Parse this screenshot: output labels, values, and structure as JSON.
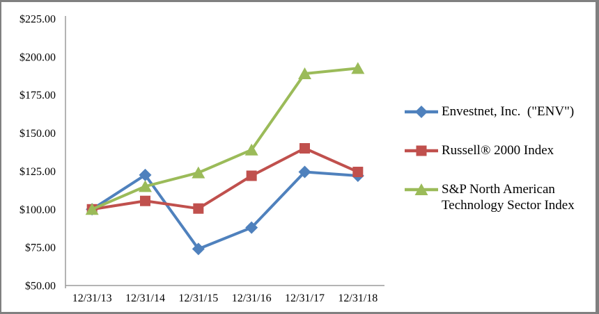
{
  "chart_data": {
    "type": "line",
    "title": "",
    "xlabel": "",
    "ylabel": "",
    "categories": [
      "12/31/13",
      "12/31/14",
      "12/31/15",
      "12/31/16",
      "12/31/17",
      "12/31/18"
    ],
    "series": [
      {
        "name": "Envestnet, Inc.  (\"ENV\")",
        "marker": "diamond",
        "color": "#4F81BD",
        "values": [
          100.0,
          122.5,
          74.0,
          88.0,
          124.5,
          122.0
        ]
      },
      {
        "name": "Russell® 2000 Index",
        "marker": "square",
        "color": "#C0504D",
        "values": [
          100.0,
          105.5,
          100.5,
          122.0,
          140.0,
          124.5
        ]
      },
      {
        "name": "S&P North American Technology Sector Index",
        "marker": "triangle",
        "color": "#9BBB59",
        "values": [
          100.0,
          115.0,
          124.0,
          139.0,
          189.0,
          192.5
        ]
      }
    ],
    "ylim": [
      50,
      225
    ],
    "ytick_step": 25,
    "ytick_prefix": "$",
    "ytick_decimals": 2,
    "grid": false,
    "legend_position": "right",
    "axis_color": "#9B9B9B",
    "text_color": "#000000"
  }
}
